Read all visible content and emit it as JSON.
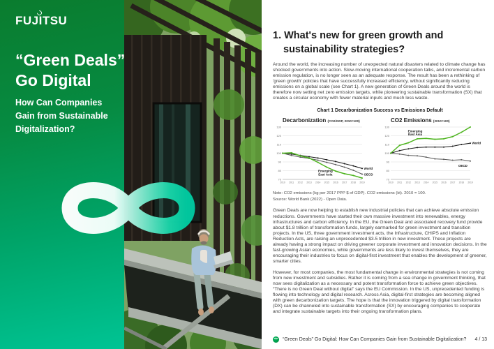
{
  "colors": {
    "brand_green_dark": "#0a7c2e",
    "brand_teal": "#00c494",
    "accent_green": "#4db41e"
  },
  "left_panel": {
    "logo": "FUJITSU",
    "title_lines": [
      "“Green Deals”",
      "Go Digital"
    ],
    "subtitle": "How Can Companies\nGain from Sustainable\nDigitalization?"
  },
  "article": {
    "heading_line1": "1. What's new for green growth and",
    "heading_line2": "sustainability strategies?",
    "para1": "Around the world, the increasing number of unexpected natural disasters related to climate change has shocked governments into action.  Slow-moving international cooperation talks, and incremental carbon emission regulation, is no longer seen as an adequate response.  The result has been a rethinking of 'green growth' policies that have successfully increased efficiency, without significantly reducing emissions on a global scale (see Chart 1).  A new generation of Green Deals around the world is therefore now setting net zero emission targets, while pioneering sustainable transformation (SX) that creates a circular economy with fewer material inputs and much less waste.",
    "chart_block_title": "Chart 1 Decarbonization Success vs Emissions Default",
    "note": "Note: CO2 emissions (kg per 2017 PPP $ of GDP).  CO2 emissions (kt).  2010 = 100.",
    "source": "Source: World Bank (2022) - Open Data.",
    "para2": "Green Deals are now helping to establish new industrial policies that can achieve absolute emission reductions.  Governments have started their own massive investment into renewables, energy infrastructures and carbon efficiency.  In the EU, the Green Deal and associated recovery fund provide about $1.8 trillion of transformation funds, largely earmarked for green investment and transition projects.  In the US, three government investment acts, the Infrastructure, CHIPS and Inflation Reduction Acts, are raising an unprecedented $3.5 trillion in new investment. These projects are already having a strong impact on driving greener corporate investment and innovation decisions.  In the fast-growing Asian economies, while governments are less likely to invest themselves, they are encouraging their industries to focus on digital-first investment that enables the development of greener, smarter cities.",
    "para3": "However, for most companies, the most fundamental change in environmental strategies is not coming from new investment and subsidies.  Rather it is coming from a sea change in government thinking, that now sees digitalization as a necessary and potent transformation force to achieve green objectives.  “There is no Green Deal without digital” says the EU Commission.  In the US, unprecedented funding is flowing into technology and digital research. Across Asia, digital-first strategies are becoming aligned with green decarbonization targets. The hope is that the innovation triggered by digital transformation (DX) can be channeled into sustainable transformation (SX) by encouraging companies to cooperate and integrate sustainable targets into their ongoing transformation plans.",
    "chart_footnote_combined": "2010 = 100"
  },
  "chart_data": [
    {
      "type": "line",
      "title": "Decarbonization",
      "title_suffix": "(CO2/GDP, 2010=100)",
      "x": [
        2010,
        2011,
        2012,
        2013,
        2014,
        2015,
        2016,
        2017,
        2018,
        2019
      ],
      "ylim": [
        70,
        130
      ],
      "yticks": [
        130,
        120,
        110,
        100,
        90,
        80,
        70
      ],
      "grid": true,
      "series": [
        {
          "name": "World",
          "color": "#1a1a1a",
          "width": 1.1,
          "values": [
            100,
            99,
            97.5,
            96,
            94.5,
            92.5,
            90.5,
            88,
            85.5,
            82.5
          ],
          "label": {
            "lines": [
              "World"
            ],
            "xi": 9,
            "dx": 2.5,
            "dy": 1.5,
            "anchor": "start"
          }
        },
        {
          "name": "OECD",
          "color": "#5a5a5a",
          "width": 1,
          "values": [
            100,
            97.5,
            95.5,
            94,
            92,
            89.5,
            87,
            84,
            80.5,
            76
          ],
          "label": {
            "lines": [
              "OECD"
            ],
            "xi": 9,
            "dx": 2.5,
            "dy": 2,
            "anchor": "start"
          }
        },
        {
          "name": "Emerging East Asia",
          "color": "#4db41e",
          "width": 1.5,
          "values": [
            100,
            100.5,
            97,
            94.5,
            89.5,
            84,
            79.5,
            76.5,
            74.5,
            71.5
          ],
          "label": {
            "lines": [
              "Emerging",
              "East Asia"
            ],
            "xi": 5,
            "dx": -2,
            "dy": 7,
            "anchor": "middle"
          }
        }
      ]
    },
    {
      "type": "line",
      "title": "CO2 Emissions",
      "title_suffix": "(2010=100)",
      "x": [
        2010,
        2011,
        2012,
        2013,
        2014,
        2015,
        2016,
        2017,
        2018,
        2019
      ],
      "ylim": [
        70,
        130
      ],
      "yticks": [
        130,
        120,
        110,
        100,
        90,
        80,
        70
      ],
      "grid": true,
      "series": [
        {
          "name": "World",
          "color": "#1a1a1a",
          "width": 1.1,
          "values": [
            100,
            103,
            105,
            106.5,
            107,
            107,
            107,
            108,
            110,
            111.5
          ],
          "label": {
            "lines": [
              "World"
            ],
            "xi": 9,
            "dx": 2.5,
            "dy": 1.5,
            "anchor": "start"
          }
        },
        {
          "name": "OECD",
          "color": "#5a5a5a",
          "width": 1,
          "values": [
            100,
            99,
            97.5,
            97,
            95.5,
            93.5,
            93,
            92,
            92.5,
            91
          ],
          "label": {
            "lines": [
              "OECD"
            ],
            "xi": 8,
            "dx": 2,
            "dy": 10,
            "anchor": "middle"
          }
        },
        {
          "name": "Emerging East Asia",
          "color": "#4db41e",
          "width": 1.5,
          "values": [
            100,
            109,
            112,
            116.5,
            117,
            116,
            116.5,
            119,
            124,
            130
          ],
          "label": {
            "lines": [
              "Emerging",
              "East Asia"
            ],
            "xi": 3,
            "dx": -3,
            "dy": -9.5,
            "anchor": "middle"
          }
        }
      ]
    }
  ],
  "footer": {
    "icon": "infinity",
    "icon_glyph": "∞",
    "text": "“Green Deals” Go Digital: How Can Companies Gain from Sustainable Digitalization?",
    "page": "4 / 13"
  }
}
